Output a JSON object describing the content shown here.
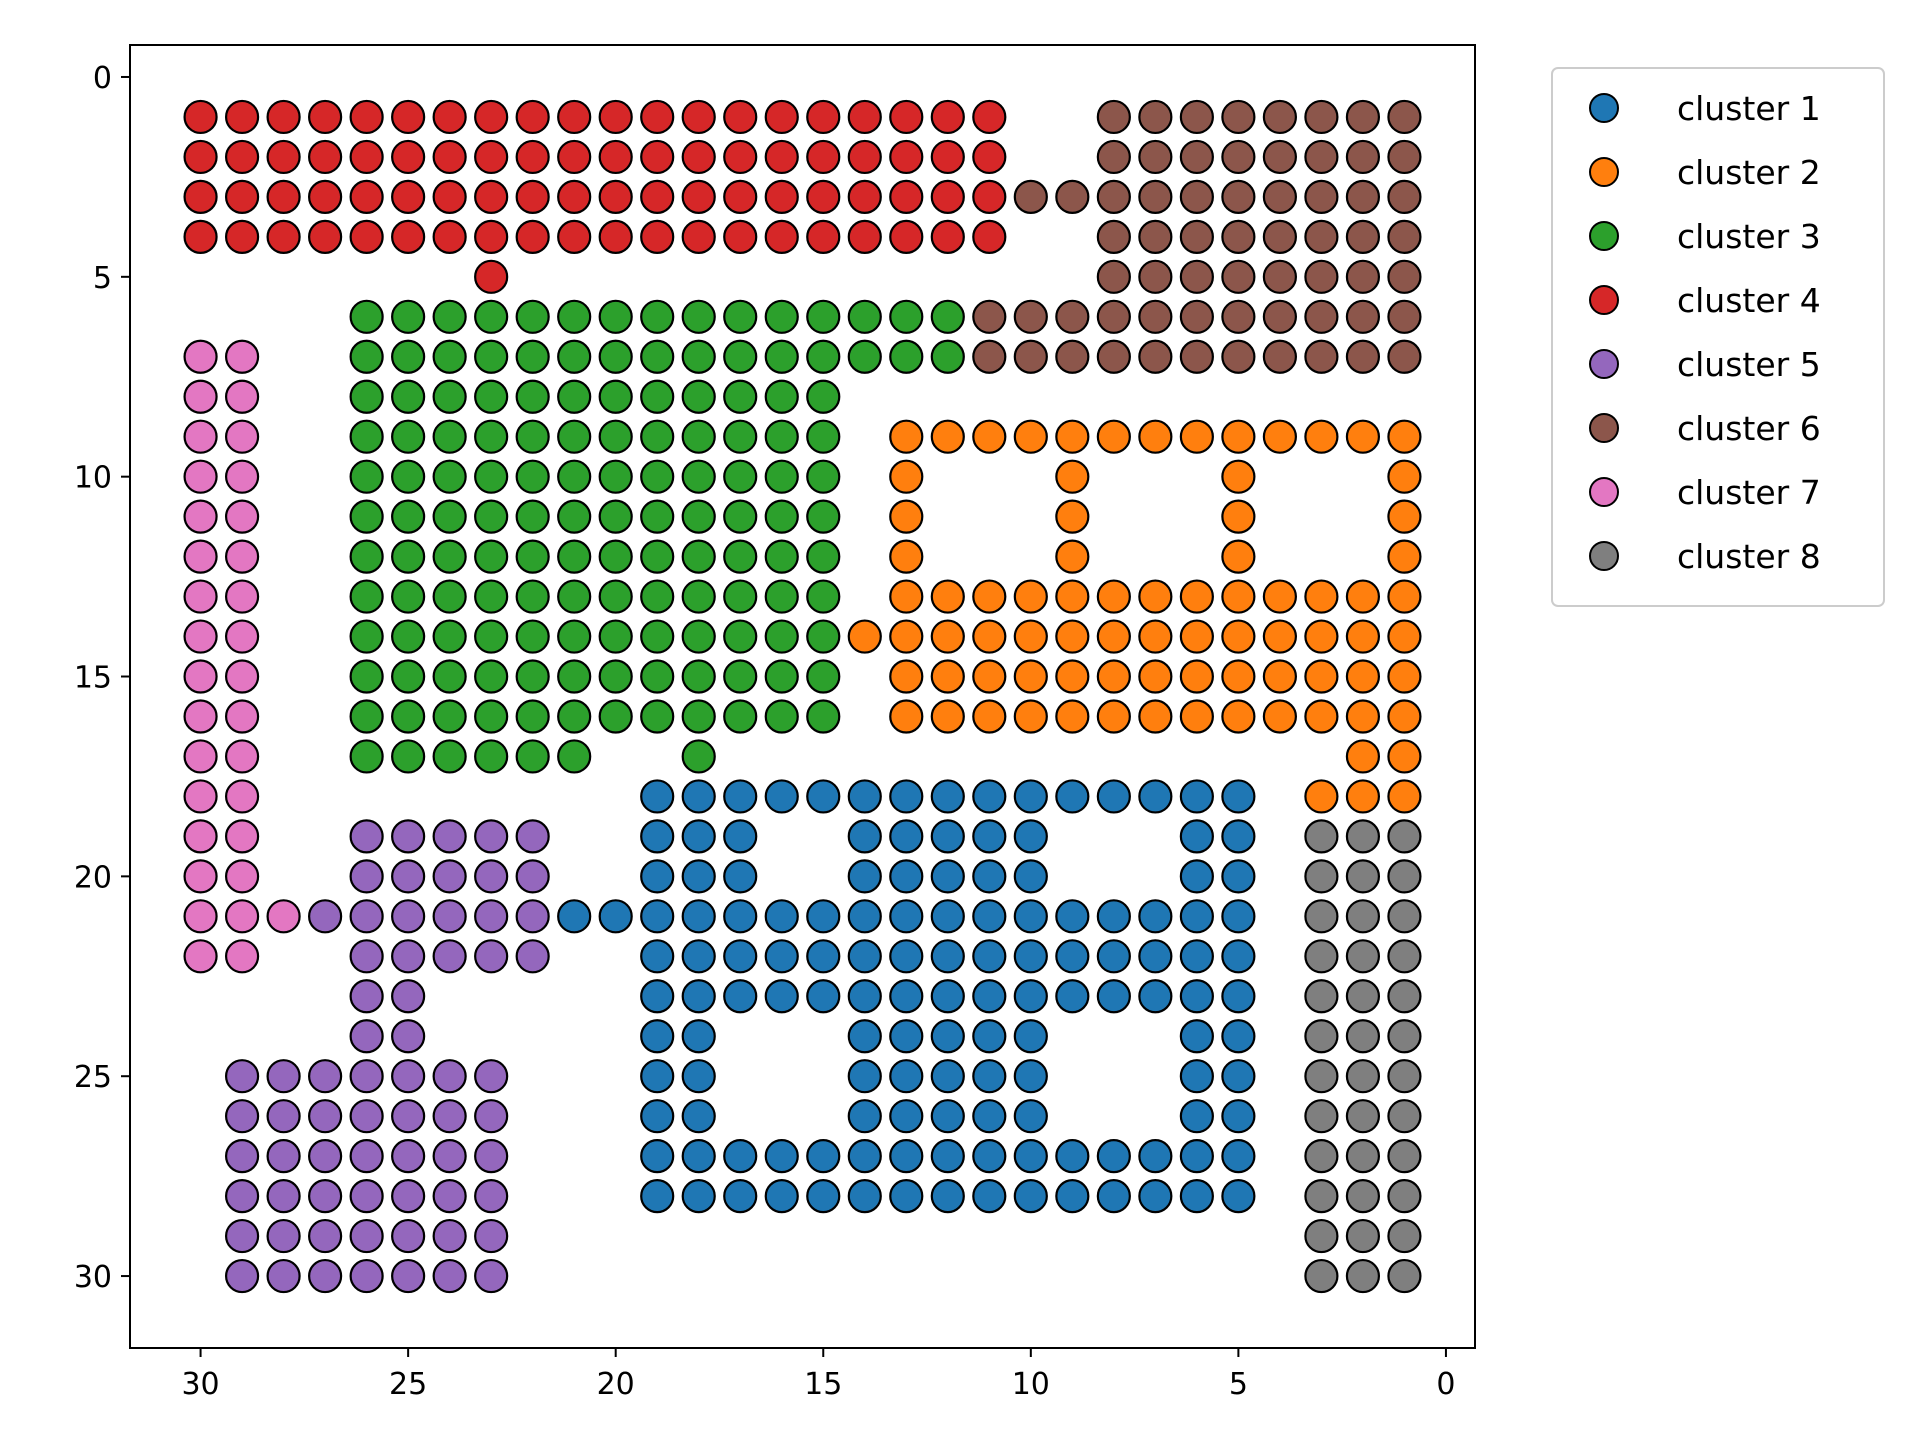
{
  "chart_data": {
    "type": "scatter",
    "title": "",
    "xlabel": "",
    "ylabel": "",
    "x_inverted": true,
    "y_inverted": true,
    "xlim": [
      31.7,
      -0.7
    ],
    "ylim": [
      31.8,
      -0.8
    ],
    "x_ticks": [
      30,
      25,
      20,
      15,
      10,
      5,
      0
    ],
    "y_ticks": [
      0,
      5,
      10,
      15,
      20,
      25,
      30
    ],
    "grid": false,
    "legend_position": "outside-top-right",
    "marker_edge_color": "#000000",
    "series": [
      {
        "name": "cluster 1",
        "color": "#1f77b4",
        "rows": [
          {
            "y": 18,
            "x": [
              19,
              18,
              17,
              16,
              15,
              14,
              13,
              12,
              11,
              10,
              9,
              8,
              7,
              6,
              5
            ]
          },
          {
            "y": 19,
            "x": [
              19,
              18,
              17,
              14,
              13,
              12,
              11,
              10,
              6,
              5
            ]
          },
          {
            "y": 20,
            "x": [
              19,
              18,
              17,
              14,
              13,
              12,
              11,
              10,
              6,
              5
            ]
          },
          {
            "y": 21,
            "x": [
              21,
              20,
              19,
              18,
              17,
              16,
              15,
              14,
              13,
              12,
              11,
              10,
              9,
              8,
              7,
              6,
              5
            ]
          },
          {
            "y": 22,
            "x": [
              19,
              18,
              17,
              16,
              15,
              14,
              13,
              12,
              11,
              10,
              9,
              8,
              7,
              6,
              5
            ]
          },
          {
            "y": 23,
            "x": [
              19,
              18,
              17,
              16,
              15,
              14,
              13,
              12,
              11,
              10,
              9,
              8,
              7,
              6,
              5
            ]
          },
          {
            "y": 24,
            "x": [
              19,
              18,
              14,
              13,
              12,
              11,
              10,
              6,
              5
            ]
          },
          {
            "y": 25,
            "x": [
              19,
              18,
              14,
              13,
              12,
              11,
              10,
              6,
              5
            ]
          },
          {
            "y": 26,
            "x": [
              19,
              18,
              14,
              13,
              12,
              11,
              10,
              6,
              5
            ]
          },
          {
            "y": 27,
            "x": [
              19,
              18,
              17,
              16,
              15,
              14,
              13,
              12,
              11,
              10,
              9,
              8,
              7,
              6,
              5
            ]
          },
          {
            "y": 28,
            "x": [
              19,
              18,
              17,
              16,
              15,
              14,
              13,
              12,
              11,
              10,
              9,
              8,
              7,
              6,
              5
            ]
          }
        ]
      },
      {
        "name": "cluster 2",
        "color": "#ff7f0e",
        "rows": [
          {
            "y": 9,
            "x": [
              13,
              12,
              11,
              10,
              9,
              8,
              7,
              6,
              5,
              4,
              3,
              2,
              1
            ]
          },
          {
            "y": 10,
            "x": [
              13,
              9,
              5,
              1
            ]
          },
          {
            "y": 11,
            "x": [
              13,
              9,
              5,
              1
            ]
          },
          {
            "y": 12,
            "x": [
              13,
              9,
              5,
              1
            ]
          },
          {
            "y": 13,
            "x": [
              13,
              12,
              11,
              10,
              9,
              8,
              7,
              6,
              5,
              4,
              3,
              2,
              1
            ]
          },
          {
            "y": 14,
            "x": [
              14,
              13,
              12,
              11,
              10,
              9,
              8,
              7,
              6,
              5,
              4,
              3,
              2,
              1
            ]
          },
          {
            "y": 15,
            "x": [
              13,
              12,
              11,
              10,
              9,
              8,
              7,
              6,
              5,
              4,
              3,
              2,
              1
            ]
          },
          {
            "y": 16,
            "x": [
              13,
              12,
              11,
              10,
              9,
              8,
              7,
              6,
              5,
              4,
              3,
              2,
              1
            ]
          },
          {
            "y": 17,
            "x": [
              2,
              1
            ]
          },
          {
            "y": 18,
            "x": [
              3,
              2,
              1
            ]
          }
        ]
      },
      {
        "name": "cluster 3",
        "color": "#2ca02c",
        "rows": [
          {
            "y": 6,
            "x": [
              26,
              25,
              24,
              23,
              22,
              21,
              20,
              19,
              18,
              17,
              16,
              15,
              14,
              13,
              12
            ]
          },
          {
            "y": 7,
            "x": [
              26,
              25,
              24,
              23,
              22,
              21,
              20,
              19,
              18,
              17,
              16,
              15,
              14,
              13,
              12
            ]
          },
          {
            "y": 8,
            "x": [
              26,
              25,
              24,
              23,
              22,
              21,
              20,
              19,
              18,
              17,
              16,
              15
            ]
          },
          {
            "y": 9,
            "x": [
              26,
              25,
              24,
              23,
              22,
              21,
              20,
              19,
              18,
              17,
              16,
              15
            ]
          },
          {
            "y": 10,
            "x": [
              26,
              25,
              24,
              23,
              22,
              21,
              20,
              19,
              18,
              17,
              16,
              15
            ]
          },
          {
            "y": 11,
            "x": [
              26,
              25,
              24,
              23,
              22,
              21,
              20,
              19,
              18,
              17,
              16,
              15
            ]
          },
          {
            "y": 12,
            "x": [
              26,
              25,
              24,
              23,
              22,
              21,
              20,
              19,
              18,
              17,
              16,
              15
            ]
          },
          {
            "y": 13,
            "x": [
              26,
              25,
              24,
              23,
              22,
              21,
              20,
              19,
              18,
              17,
              16,
              15
            ]
          },
          {
            "y": 14,
            "x": [
              26,
              25,
              24,
              23,
              22,
              21,
              20,
              19,
              18,
              17,
              16,
              15
            ]
          },
          {
            "y": 15,
            "x": [
              26,
              25,
              24,
              23,
              22,
              21,
              20,
              19,
              18,
              17,
              16,
              15
            ]
          },
          {
            "y": 16,
            "x": [
              26,
              25,
              24,
              23,
              22,
              21,
              20,
              19,
              18,
              17,
              16,
              15
            ]
          },
          {
            "y": 17,
            "x": [
              26,
              25,
              24,
              23,
              22,
              21,
              18
            ]
          }
        ]
      },
      {
        "name": "cluster 4",
        "color": "#d62728",
        "rows": [
          {
            "y": 1,
            "x": [
              30,
              29,
              28,
              27,
              26,
              25,
              24,
              23,
              22,
              21,
              20,
              19,
              18,
              17,
              16,
              15,
              14,
              13,
              12,
              11
            ]
          },
          {
            "y": 2,
            "x": [
              30,
              29,
              28,
              27,
              26,
              25,
              24,
              23,
              22,
              21,
              20,
              19,
              18,
              17,
              16,
              15,
              14,
              13,
              12,
              11
            ]
          },
          {
            "y": 3,
            "x": [
              30,
              29,
              28,
              27,
              26,
              25,
              24,
              23,
              22,
              21,
              20,
              19,
              18,
              17,
              16,
              15,
              14,
              13,
              12,
              11
            ]
          },
          {
            "y": 4,
            "x": [
              30,
              29,
              28,
              27,
              26,
              25,
              24,
              23,
              22,
              21,
              20,
              19,
              18,
              17,
              16,
              15,
              14,
              13,
              12,
              11
            ]
          },
          {
            "y": 5,
            "x": [
              23
            ]
          }
        ]
      },
      {
        "name": "cluster 5",
        "color": "#9467bd",
        "rows": [
          {
            "y": 19,
            "x": [
              26,
              25,
              24,
              23,
              22
            ]
          },
          {
            "y": 20,
            "x": [
              26,
              25,
              24,
              23,
              22
            ]
          },
          {
            "y": 21,
            "x": [
              27,
              26,
              25,
              24,
              23,
              22
            ]
          },
          {
            "y": 22,
            "x": [
              26,
              25,
              24,
              23,
              22
            ]
          },
          {
            "y": 23,
            "x": [
              26,
              25
            ]
          },
          {
            "y": 24,
            "x": [
              26,
              25
            ]
          },
          {
            "y": 25,
            "x": [
              29,
              28,
              27,
              26,
              25,
              24,
              23
            ]
          },
          {
            "y": 26,
            "x": [
              29,
              28,
              27,
              26,
              25,
              24,
              23
            ]
          },
          {
            "y": 27,
            "x": [
              29,
              28,
              27,
              26,
              25,
              24,
              23
            ]
          },
          {
            "y": 28,
            "x": [
              29,
              28,
              27,
              26,
              25,
              24,
              23
            ]
          },
          {
            "y": 29,
            "x": [
              29,
              28,
              27,
              26,
              25,
              24,
              23
            ]
          },
          {
            "y": 30,
            "x": [
              29,
              28,
              27,
              26,
              25,
              24,
              23
            ]
          }
        ]
      },
      {
        "name": "cluster 6",
        "color": "#8c564b",
        "rows": [
          {
            "y": 1,
            "x": [
              8,
              7,
              6,
              5,
              4,
              3,
              2,
              1
            ]
          },
          {
            "y": 2,
            "x": [
              8,
              7,
              6,
              5,
              4,
              3,
              2,
              1
            ]
          },
          {
            "y": 3,
            "x": [
              10,
              9,
              8,
              7,
              6,
              5,
              4,
              3,
              2,
              1
            ]
          },
          {
            "y": 4,
            "x": [
              8,
              7,
              6,
              5,
              4,
              3,
              2,
              1
            ]
          },
          {
            "y": 5,
            "x": [
              8,
              7,
              6,
              5,
              4,
              3,
              2,
              1
            ]
          },
          {
            "y": 6,
            "x": [
              11,
              10,
              9,
              8,
              7,
              6,
              5,
              4,
              3,
              2,
              1
            ]
          },
          {
            "y": 7,
            "x": [
              11,
              10,
              9,
              8,
              7,
              6,
              5,
              4,
              3,
              2,
              1
            ]
          }
        ]
      },
      {
        "name": "cluster 7",
        "color": "#e377c2",
        "rows": [
          {
            "y": 7,
            "x": [
              30,
              29
            ]
          },
          {
            "y": 8,
            "x": [
              30,
              29
            ]
          },
          {
            "y": 9,
            "x": [
              30,
              29
            ]
          },
          {
            "y": 10,
            "x": [
              30,
              29
            ]
          },
          {
            "y": 11,
            "x": [
              30,
              29
            ]
          },
          {
            "y": 12,
            "x": [
              30,
              29
            ]
          },
          {
            "y": 13,
            "x": [
              30,
              29
            ]
          },
          {
            "y": 14,
            "x": [
              30,
              29
            ]
          },
          {
            "y": 15,
            "x": [
              30,
              29
            ]
          },
          {
            "y": 16,
            "x": [
              30,
              29
            ]
          },
          {
            "y": 17,
            "x": [
              30,
              29
            ]
          },
          {
            "y": 18,
            "x": [
              30,
              29
            ]
          },
          {
            "y": 19,
            "x": [
              30,
              29
            ]
          },
          {
            "y": 20,
            "x": [
              30,
              29
            ]
          },
          {
            "y": 21,
            "x": [
              30,
              29,
              28
            ]
          },
          {
            "y": 22,
            "x": [
              30,
              29
            ]
          }
        ]
      },
      {
        "name": "cluster 8",
        "color": "#7f7f7f",
        "rows": [
          {
            "y": 19,
            "x": [
              3,
              2,
              1
            ]
          },
          {
            "y": 20,
            "x": [
              3,
              2,
              1
            ]
          },
          {
            "y": 21,
            "x": [
              3,
              2,
              1
            ]
          },
          {
            "y": 22,
            "x": [
              3,
              2,
              1
            ]
          },
          {
            "y": 23,
            "x": [
              3,
              2,
              1
            ]
          },
          {
            "y": 24,
            "x": [
              3,
              2,
              1
            ]
          },
          {
            "y": 25,
            "x": [
              3,
              2,
              1
            ]
          },
          {
            "y": 26,
            "x": [
              3,
              2,
              1
            ]
          },
          {
            "y": 27,
            "x": [
              3,
              2,
              1
            ]
          },
          {
            "y": 28,
            "x": [
              3,
              2,
              1
            ]
          },
          {
            "y": 29,
            "x": [
              3,
              2,
              1
            ]
          },
          {
            "y": 30,
            "x": [
              3,
              2,
              1
            ]
          }
        ]
      }
    ]
  }
}
